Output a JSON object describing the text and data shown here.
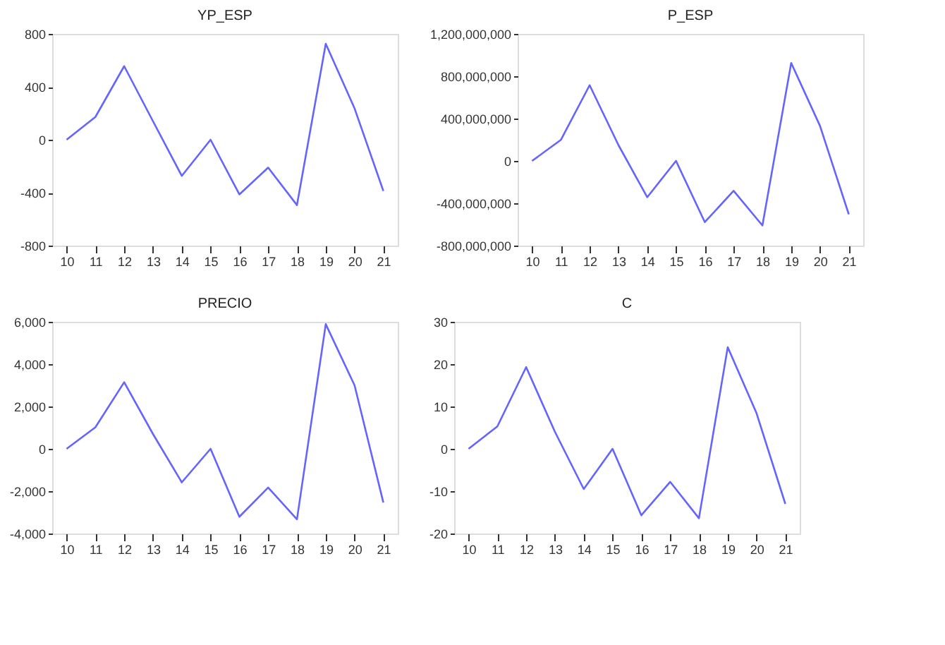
{
  "chart_data": [
    {
      "type": "line",
      "title": "YP_ESP",
      "categories": [
        "10",
        "11",
        "12",
        "13",
        "14",
        "15",
        "16",
        "17",
        "18",
        "19",
        "20",
        "21"
      ],
      "series": [
        {
          "color": "#6464ff",
          "values": [
            0,
            172,
            556,
            140,
            -273,
            0,
            -413,
            -211,
            -494,
            725,
            237,
            -387
          ]
        }
      ],
      "ylim": [
        -800,
        800
      ],
      "yticks": [
        -800,
        -400,
        0,
        400,
        800
      ],
      "grid": false,
      "marker": "none",
      "line_style": "solid"
    },
    {
      "type": "line",
      "title": "P_ESP",
      "categories": [
        "10",
        "11",
        "12",
        "13",
        "14",
        "15",
        "16",
        "17",
        "18",
        "19",
        "20",
        "21"
      ],
      "series": [
        {
          "color": "#6464ff",
          "values": [
            0,
            198000000,
            715000000,
            150000000,
            -343000000,
            0,
            -578000000,
            -283000000,
            -610000000,
            925000000,
            331000000,
            -505000000
          ]
        }
      ],
      "ylim": [
        -800000000,
        1200000000
      ],
      "yticks": [
        {
          "value": -800000000,
          "label": "-800,000,000"
        },
        {
          "value": -400000000,
          "label": "-400,000,000"
        },
        0,
        {
          "value": 400000000,
          "label": "400,000,000"
        },
        {
          "value": 800000000,
          "label": "800,000,000"
        },
        {
          "value": 1200000000,
          "label": "1,200,000,000"
        }
      ],
      "grid": false,
      "marker": "none",
      "line_style": "solid"
    },
    {
      "type": "line",
      "title": "PRECIO",
      "categories": [
        "10",
        "11",
        "12",
        "13",
        "14",
        "15",
        "16",
        "17",
        "18",
        "19",
        "20",
        "21"
      ],
      "series": [
        {
          "color": "#6464ff",
          "values": [
            0,
            1015,
            3147,
            700,
            -1584,
            0,
            -3208,
            -1827,
            -3330,
            5888,
            3000,
            -2538
          ]
        }
      ],
      "ylim": [
        -4000,
        6000
      ],
      "yticks": [
        {
          "value": -4000,
          "label": "-4,000"
        },
        {
          "value": -2000,
          "label": "-2,000"
        },
        0,
        {
          "value": 2000,
          "label": "2,000"
        },
        {
          "value": 4000,
          "label": "4,000"
        },
        {
          "value": 6000,
          "label": "6,000"
        }
      ],
      "grid": false,
      "marker": "none",
      "line_style": "solid"
    },
    {
      "type": "line",
      "title": "C",
      "categories": [
        "10",
        "11",
        "12",
        "13",
        "14",
        "15",
        "16",
        "17",
        "18",
        "19",
        "20",
        "21"
      ],
      "series": [
        {
          "color": "#6464ff",
          "values": [
            0,
            5.3,
            19.3,
            4,
            -9.5,
            0,
            -15.7,
            -7.8,
            -16.4,
            24,
            8.4,
            -13
          ]
        }
      ],
      "ylim": [
        -20,
        30
      ],
      "yticks": [
        -20,
        -10,
        0,
        10,
        20,
        30
      ],
      "grid": false,
      "marker": "none",
      "line_style": "solid"
    }
  ]
}
